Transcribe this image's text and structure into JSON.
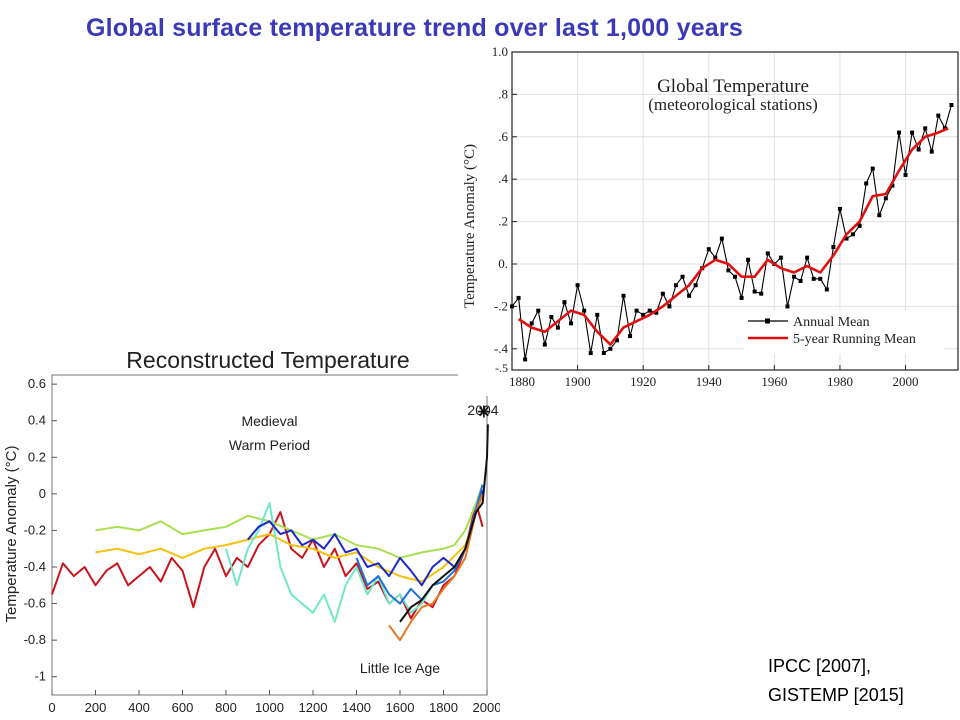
{
  "header": {
    "title": "Global surface  temperature  trend over last 1,000  years"
  },
  "citation": {
    "line1": "IPCC [2007],",
    "line2": "GISTEMP [2015]"
  },
  "chart_data": [
    {
      "type": "line",
      "title": "Reconstructed Temperature",
      "xlabel": "",
      "ylabel": "Temperature Anomaly (°C)",
      "xlim": [
        0,
        2000
      ],
      "ylim": [
        -1.1,
        0.65
      ],
      "x_ticks": [
        0,
        200,
        400,
        600,
        800,
        1000,
        1200,
        1400,
        1600,
        1800,
        2000
      ],
      "y_ticks": [
        -1,
        -0.8,
        -0.6,
        -0.4,
        -0.2,
        0,
        0.2,
        0.4,
        0.6
      ],
      "y_tick_labels": [
        "-1",
        "-0.8",
        "-0.6",
        "-0.4",
        "-0.2",
        "0",
        "0.2",
        "0.4",
        "0.6"
      ],
      "annotations": [
        {
          "text": "Medieval",
          "x": 1000,
          "y": 0.37
        },
        {
          "text": "Warm Period",
          "x": 1000,
          "y": 0.24
        },
        {
          "text": "Little Ice Age",
          "x": 1600,
          "y": -0.98
        },
        {
          "text": "2004",
          "x": 1910,
          "y": 0.43
        }
      ],
      "marker_2004": {
        "x": 2004,
        "y": 0.45
      },
      "series": [
        {
          "color": "#c8141e",
          "x": [
            0,
            50,
            100,
            150,
            200,
            250,
            300,
            350,
            400,
            450,
            500,
            550,
            600,
            650,
            700,
            750,
            800,
            850,
            900,
            950,
            1000,
            1050,
            1100,
            1150,
            1200,
            1250,
            1300,
            1350,
            1400,
            1450,
            1500,
            1550,
            1600,
            1650,
            1700,
            1750,
            1800,
            1850,
            1900,
            1950,
            1980
          ],
          "y": [
            -0.55,
            -0.38,
            -0.45,
            -0.4,
            -0.5,
            -0.42,
            -0.38,
            -0.5,
            -0.45,
            -0.4,
            -0.48,
            -0.35,
            -0.42,
            -0.62,
            -0.4,
            -0.3,
            -0.45,
            -0.35,
            -0.4,
            -0.28,
            -0.22,
            -0.1,
            -0.3,
            -0.35,
            -0.25,
            -0.4,
            -0.3,
            -0.45,
            -0.38,
            -0.52,
            -0.48,
            -0.6,
            -0.55,
            -0.68,
            -0.58,
            -0.62,
            -0.5,
            -0.45,
            -0.3,
            -0.05,
            -0.18
          ]
        },
        {
          "color": "#a8e050",
          "x": [
            200,
            300,
            400,
            500,
            600,
            700,
            800,
            900,
            1000,
            1100,
            1200,
            1300,
            1400,
            1500,
            1600,
            1700,
            1800,
            1850,
            1900,
            1950,
            1980
          ],
          "y": [
            -0.2,
            -0.18,
            -0.2,
            -0.15,
            -0.22,
            -0.2,
            -0.18,
            -0.12,
            -0.15,
            -0.2,
            -0.25,
            -0.22,
            -0.28,
            -0.3,
            -0.35,
            -0.32,
            -0.3,
            -0.28,
            -0.2,
            -0.05,
            0.05
          ]
        },
        {
          "color": "#f5c010",
          "x": [
            200,
            300,
            400,
            500,
            600,
            700,
            800,
            900,
            1000,
            1100,
            1200,
            1300,
            1400,
            1500,
            1600,
            1700,
            1800,
            1900,
            1950,
            1980
          ],
          "y": [
            -0.32,
            -0.3,
            -0.33,
            -0.3,
            -0.35,
            -0.3,
            -0.28,
            -0.25,
            -0.22,
            -0.28,
            -0.3,
            -0.35,
            -0.32,
            -0.4,
            -0.45,
            -0.48,
            -0.4,
            -0.28,
            -0.1,
            0.0
          ]
        },
        {
          "color": "#70e8c8",
          "x": [
            800,
            850,
            900,
            950,
            1000,
            1050,
            1100,
            1150,
            1200,
            1250,
            1300,
            1350,
            1400,
            1450,
            1500,
            1550,
            1600,
            1650,
            1700,
            1750,
            1800
          ],
          "y": [
            -0.3,
            -0.5,
            -0.3,
            -0.2,
            -0.05,
            -0.4,
            -0.55,
            -0.6,
            -0.65,
            -0.55,
            -0.7,
            -0.5,
            -0.4,
            -0.55,
            -0.45,
            -0.6,
            -0.55,
            -0.65,
            -0.6,
            -0.5,
            -0.45
          ]
        },
        {
          "color": "#1a28c8",
          "x": [
            900,
            950,
            1000,
            1050,
            1100,
            1150,
            1200,
            1250,
            1300,
            1350,
            1400,
            1450,
            1500,
            1550,
            1600,
            1650,
            1700,
            1750,
            1800,
            1850,
            1900,
            1950,
            1980
          ],
          "y": [
            -0.25,
            -0.18,
            -0.15,
            -0.22,
            -0.2,
            -0.28,
            -0.25,
            -0.3,
            -0.22,
            -0.32,
            -0.3,
            -0.4,
            -0.38,
            -0.45,
            -0.35,
            -0.42,
            -0.5,
            -0.4,
            -0.35,
            -0.4,
            -0.3,
            -0.1,
            0.02
          ]
        },
        {
          "color": "#2070e0",
          "x": [
            1400,
            1450,
            1500,
            1550,
            1600,
            1650,
            1700,
            1750,
            1800,
            1850,
            1900,
            1950,
            1980
          ],
          "y": [
            -0.35,
            -0.5,
            -0.45,
            -0.55,
            -0.6,
            -0.52,
            -0.58,
            -0.5,
            -0.48,
            -0.42,
            -0.3,
            -0.08,
            0.05
          ]
        },
        {
          "color": "#e87820",
          "x": [
            1550,
            1600,
            1650,
            1700,
            1750,
            1800,
            1850,
            1900,
            1950,
            1980
          ],
          "y": [
            -0.72,
            -0.8,
            -0.7,
            -0.62,
            -0.6,
            -0.52,
            -0.45,
            -0.35,
            -0.1,
            0.0
          ]
        },
        {
          "color": "#111111",
          "x": [
            1600,
            1650,
            1700,
            1750,
            1800,
            1850,
            1900,
            1950,
            1980,
            2000,
            2004
          ],
          "y": [
            -0.7,
            -0.62,
            -0.58,
            -0.5,
            -0.45,
            -0.4,
            -0.3,
            -0.1,
            -0.05,
            0.2,
            0.38
          ]
        }
      ]
    },
    {
      "type": "line",
      "title": "Global Temperature",
      "subtitle": "(meteorological stations)",
      "xlabel": "",
      "ylabel": "Temperature Anomaly (°C)",
      "xlim": [
        1880,
        2016
      ],
      "ylim": [
        -0.5,
        1.0
      ],
      "x_ticks": [
        1880,
        1900,
        1920,
        1940,
        1960,
        1980,
        2000
      ],
      "x_tick_labels": [
        "1880",
        "1900",
        "1920",
        "1940",
        "1960",
        "1980",
        "2000"
      ],
      "y_ticks": [
        -0.4,
        -0.2,
        0,
        0.2,
        0.4,
        0.6,
        0.8,
        1.0
      ],
      "y_tick_labels": [
        "-.4",
        "-.2",
        "0.",
        ".2",
        ".4",
        ".6",
        ".8",
        "1.0"
      ],
      "y_bottom_label": "-.5",
      "legend": {
        "position": "bottom-right",
        "entries": [
          "Annual Mean",
          "5-year Running Mean"
        ]
      },
      "series": [
        {
          "name": "Annual Mean",
          "color": "#000000",
          "x": [
            1880,
            1882,
            1884,
            1886,
            1888,
            1890,
            1892,
            1894,
            1896,
            1898,
            1900,
            1902,
            1904,
            1906,
            1908,
            1910,
            1912,
            1914,
            1916,
            1918,
            1920,
            1922,
            1924,
            1926,
            1928,
            1930,
            1932,
            1934,
            1936,
            1938,
            1940,
            1942,
            1944,
            1946,
            1948,
            1950,
            1952,
            1954,
            1956,
            1958,
            1960,
            1962,
            1964,
            1966,
            1968,
            1970,
            1972,
            1974,
            1976,
            1978,
            1980,
            1982,
            1984,
            1986,
            1988,
            1990,
            1992,
            1994,
            1996,
            1998,
            2000,
            2002,
            2004,
            2006,
            2008,
            2010,
            2012,
            2014
          ],
          "y": [
            -0.2,
            -0.16,
            -0.45,
            -0.28,
            -0.22,
            -0.38,
            -0.25,
            -0.3,
            -0.18,
            -0.28,
            -0.1,
            -0.22,
            -0.42,
            -0.24,
            -0.42,
            -0.4,
            -0.36,
            -0.15,
            -0.34,
            -0.22,
            -0.24,
            -0.22,
            -0.23,
            -0.14,
            -0.2,
            -0.1,
            -0.06,
            -0.15,
            -0.1,
            -0.02,
            0.07,
            0.03,
            0.12,
            -0.03,
            -0.06,
            -0.16,
            0.02,
            -0.13,
            -0.14,
            0.05,
            0.0,
            0.03,
            -0.2,
            -0.06,
            -0.08,
            0.03,
            -0.07,
            -0.07,
            -0.12,
            0.08,
            0.26,
            0.12,
            0.14,
            0.18,
            0.38,
            0.45,
            0.23,
            0.31,
            0.37,
            0.62,
            0.42,
            0.62,
            0.54,
            0.64,
            0.53,
            0.7,
            0.64,
            0.75
          ]
        },
        {
          "name": "5-year Running Mean",
          "color": "#e01010",
          "x": [
            1882,
            1886,
            1890,
            1894,
            1898,
            1902,
            1906,
            1910,
            1914,
            1918,
            1922,
            1926,
            1930,
            1934,
            1938,
            1942,
            1946,
            1950,
            1954,
            1958,
            1962,
            1966,
            1970,
            1974,
            1978,
            1982,
            1986,
            1990,
            1994,
            1998,
            2002,
            2006,
            2010,
            2013
          ],
          "y": [
            -0.26,
            -0.3,
            -0.32,
            -0.27,
            -0.22,
            -0.24,
            -0.32,
            -0.38,
            -0.3,
            -0.27,
            -0.24,
            -0.2,
            -0.15,
            -0.1,
            -0.02,
            0.02,
            0.0,
            -0.06,
            -0.06,
            0.02,
            -0.02,
            -0.04,
            -0.01,
            -0.04,
            0.04,
            0.14,
            0.2,
            0.32,
            0.33,
            0.44,
            0.54,
            0.6,
            0.62,
            0.64
          ]
        }
      ]
    }
  ]
}
